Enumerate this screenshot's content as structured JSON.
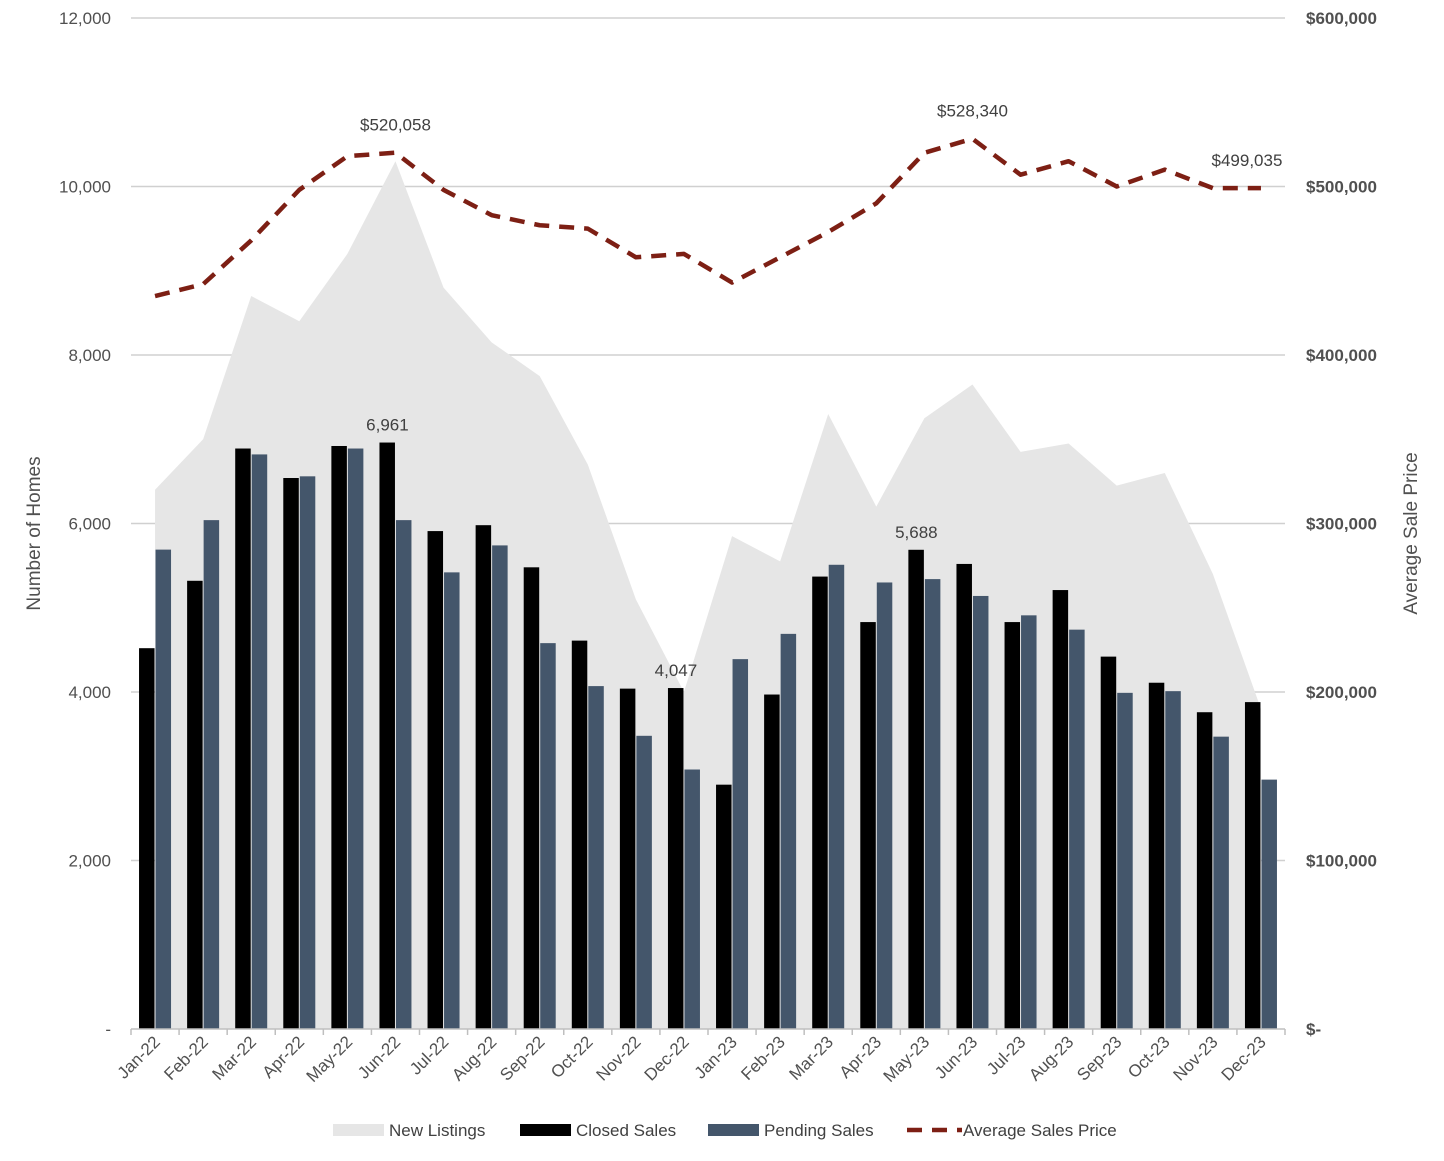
{
  "chart_data": {
    "type": "bar",
    "categories": [
      "Jan-22",
      "Feb-22",
      "Mar-22",
      "Apr-22",
      "May-22",
      "Jun-22",
      "Jul-22",
      "Aug-22",
      "Sep-22",
      "Oct-22",
      "Nov-22",
      "Dec-22",
      "Jan-23",
      "Feb-23",
      "Mar-23",
      "Apr-23",
      "May-23",
      "Jun-23",
      "Jul-23",
      "Aug-23",
      "Sep-23",
      "Oct-23",
      "Nov-23",
      "Dec-23"
    ],
    "series": [
      {
        "name": "New Listings",
        "kind": "area",
        "axis": "left",
        "color": "#e6e6e6",
        "values": [
          6400,
          7000,
          8700,
          8400,
          9200,
          10300,
          8800,
          8150,
          7750,
          6700,
          5100,
          4000,
          5850,
          5550,
          7300,
          6200,
          7250,
          7650,
          6850,
          6950,
          6450,
          6600,
          5400,
          3800
        ]
      },
      {
        "name": "Closed Sales",
        "kind": "bar",
        "axis": "left",
        "color": "#000000",
        "values": [
          4520,
          5320,
          6890,
          6540,
          6920,
          6961,
          5910,
          5980,
          5480,
          4610,
          4040,
          4047,
          2900,
          3970,
          5370,
          4830,
          5688,
          5520,
          4830,
          5210,
          4420,
          4110,
          3760,
          3880
        ]
      },
      {
        "name": "Pending Sales",
        "kind": "bar",
        "axis": "left",
        "color": "#44566b",
        "values": [
          5690,
          6040,
          6820,
          6560,
          6890,
          6040,
          5420,
          5740,
          4580,
          4070,
          3480,
          3080,
          4390,
          4690,
          5510,
          5300,
          5340,
          5140,
          4910,
          4740,
          3990,
          4010,
          3470,
          2960
        ]
      },
      {
        "name": "Average Sales Price",
        "kind": "line",
        "axis": "right",
        "color": "#7d1f14",
        "values": [
          435000,
          442000,
          468000,
          498000,
          518000,
          520058,
          498000,
          483000,
          477000,
          475000,
          458000,
          460000,
          443000,
          458000,
          473000,
          490000,
          520000,
          528340,
          507000,
          515000,
          500000,
          510000,
          499000,
          499035
        ]
      }
    ],
    "data_labels": [
      {
        "series": "Closed Sales",
        "index": 5,
        "text": "6,961"
      },
      {
        "series": "Closed Sales",
        "index": 11,
        "text": "4,047"
      },
      {
        "series": "Closed Sales",
        "index": 16,
        "text": "5,688"
      },
      {
        "series": "Average Sales Price",
        "index": 5,
        "text": "$520,058"
      },
      {
        "series": "Average Sales Price",
        "index": 17,
        "text": "$528,340"
      },
      {
        "series": "Average Sales Price",
        "index": 23,
        "text": "$499,035"
      }
    ],
    "y_left": {
      "label": "Number of Homes",
      "min": 0,
      "max": 12000,
      "ticks": [
        "-",
        "2,000",
        "4,000",
        "6,000",
        "8,000",
        "10,000",
        "12,000"
      ]
    },
    "y_right": {
      "label": "Average Sale Price",
      "min": 0,
      "max": 600000,
      "ticks": [
        "$-",
        "$100,000",
        "$200,000",
        "$300,000",
        "$400,000",
        "$500,000",
        "$600,000"
      ]
    },
    "grid": true,
    "legend_position": "bottom",
    "legend": [
      "New Listings",
      "Closed Sales",
      "Pending Sales",
      "Average Sales Price"
    ]
  }
}
